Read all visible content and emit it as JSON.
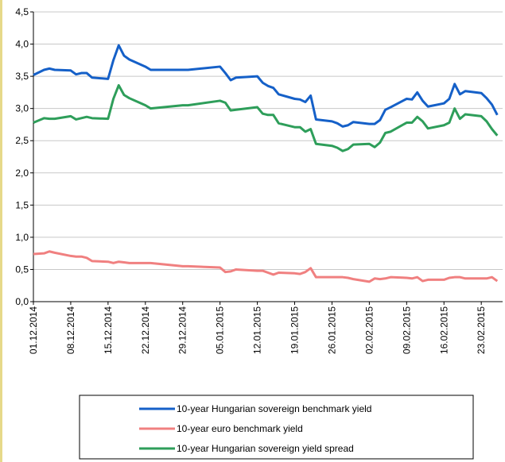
{
  "chart_data": {
    "type": "line",
    "x": [
      "01.12.2014",
      "03.12.2014",
      "04.12.2014",
      "05.12.2014",
      "08.12.2014",
      "09.12.2014",
      "10.12.2014",
      "11.12.2014",
      "12.12.2014",
      "15.12.2014",
      "16.12.2014",
      "17.12.2014",
      "18.12.2014",
      "19.12.2014",
      "22.12.2014",
      "23.12.2014",
      "29.12.2014",
      "30.12.2014",
      "05.01.2015",
      "06.01.2015",
      "07.01.2015",
      "08.01.2015",
      "12.01.2015",
      "13.01.2015",
      "14.01.2015",
      "15.01.2015",
      "16.01.2015",
      "19.01.2015",
      "20.01.2015",
      "21.01.2015",
      "22.01.2015",
      "23.01.2015",
      "26.01.2015",
      "27.01.2015",
      "28.01.2015",
      "29.01.2015",
      "30.01.2015",
      "02.02.2015",
      "03.02.2015",
      "04.02.2015",
      "05.02.2015",
      "06.02.2015",
      "09.02.2015",
      "10.02.2015",
      "11.02.2015",
      "12.02.2015",
      "13.02.2015",
      "16.02.2015",
      "17.02.2015",
      "18.02.2015",
      "19.02.2015",
      "20.02.2015",
      "23.02.2015",
      "24.02.2015",
      "25.02.2015",
      "26.02.2015"
    ],
    "series": [
      {
        "name": "10-year Hungarian sovereign benchmark yield",
        "color": "#1560c8",
        "values": [
          3.52,
          3.6,
          3.62,
          3.6,
          3.59,
          3.53,
          3.55,
          3.55,
          3.48,
          3.46,
          3.75,
          3.98,
          3.82,
          3.76,
          3.65,
          3.6,
          3.6,
          3.6,
          3.65,
          3.55,
          3.44,
          3.48,
          3.5,
          3.4,
          3.35,
          3.32,
          3.22,
          3.15,
          3.14,
          3.1,
          3.2,
          2.83,
          2.8,
          2.77,
          2.72,
          2.74,
          2.79,
          2.76,
          2.76,
          2.82,
          2.98,
          3.02,
          3.15,
          3.14,
          3.25,
          3.12,
          3.03,
          3.08,
          3.15,
          3.38,
          3.22,
          3.27,
          3.24,
          3.16,
          3.06,
          2.9
        ]
      },
      {
        "name": "10-year euro benchmark yield",
        "color": "#f08080",
        "values": [
          0.74,
          0.75,
          0.78,
          0.76,
          0.71,
          0.7,
          0.7,
          0.68,
          0.63,
          0.62,
          0.6,
          0.62,
          0.61,
          0.6,
          0.6,
          0.6,
          0.55,
          0.55,
          0.53,
          0.46,
          0.47,
          0.5,
          0.48,
          0.48,
          0.45,
          0.42,
          0.45,
          0.44,
          0.43,
          0.46,
          0.52,
          0.38,
          0.38,
          0.38,
          0.38,
          0.37,
          0.35,
          0.31,
          0.36,
          0.35,
          0.36,
          0.38,
          0.37,
          0.36,
          0.38,
          0.32,
          0.34,
          0.34,
          0.37,
          0.38,
          0.38,
          0.36,
          0.36,
          0.36,
          0.38,
          0.32
        ]
      },
      {
        "name": "10-year Hungarian sovereign yield spread",
        "color": "#2e9e5a",
        "values": [
          2.78,
          2.85,
          2.84,
          2.84,
          2.88,
          2.83,
          2.85,
          2.87,
          2.85,
          2.84,
          3.15,
          3.36,
          3.21,
          3.16,
          3.05,
          3.0,
          3.05,
          3.05,
          3.12,
          3.09,
          2.97,
          2.98,
          3.02,
          2.92,
          2.9,
          2.9,
          2.77,
          2.71,
          2.71,
          2.64,
          2.68,
          2.45,
          2.42,
          2.39,
          2.34,
          2.37,
          2.44,
          2.45,
          2.4,
          2.47,
          2.62,
          2.64,
          2.78,
          2.78,
          2.87,
          2.8,
          2.69,
          2.74,
          2.78,
          3.0,
          2.84,
          2.91,
          2.88,
          2.8,
          2.68,
          2.58
        ]
      }
    ],
    "xlim": [
      "01.12.2014",
      "27.02.2015"
    ],
    "xticks": [
      "01.12.2014",
      "08.12.2014",
      "15.12.2014",
      "22.12.2014",
      "29.12.2014",
      "05.01.2015",
      "12.01.2015",
      "19.01.2015",
      "26.01.2015",
      "02.02.2015",
      "09.02.2015",
      "16.02.2015",
      "23.02.2015"
    ],
    "ylim": [
      0,
      4.5
    ],
    "yticks": [
      {
        "value": 0,
        "label": "0,0"
      },
      {
        "value": 0.5,
        "label": "0,5"
      },
      {
        "value": 1,
        "label": "1,0"
      },
      {
        "value": 1.5,
        "label": "1,5"
      },
      {
        "value": 2,
        "label": "2,0"
      },
      {
        "value": 2.5,
        "label": "2,5"
      },
      {
        "value": 3,
        "label": "3,0"
      },
      {
        "value": 3.5,
        "label": "3,5"
      },
      {
        "value": 4,
        "label": "4,0"
      },
      {
        "value": 4.5,
        "label": "4,5"
      }
    ],
    "grid": true
  }
}
